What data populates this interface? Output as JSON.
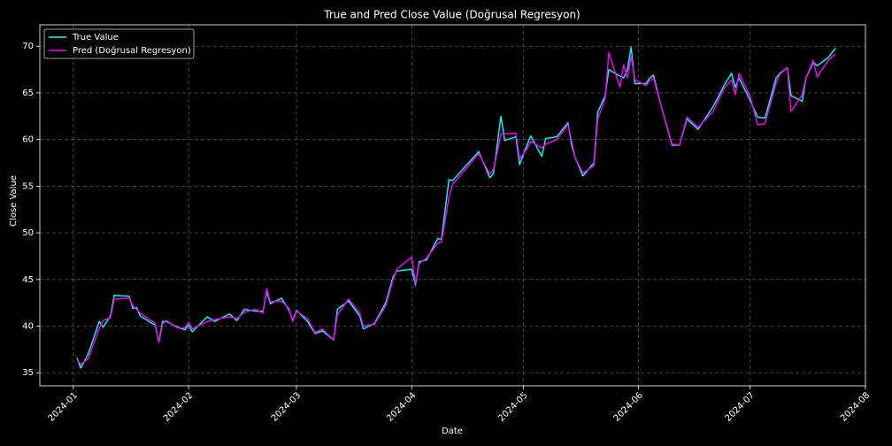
{
  "chart_data": {
    "type": "line",
    "title": "True and Pred Close Value (Doğrusal Regresyon)",
    "xlabel": "Date",
    "ylabel": "Close Value",
    "x": [
      "2024-01-02",
      "2024-01-03",
      "2024-01-05",
      "2024-01-08",
      "2024-01-09",
      "2024-01-11",
      "2024-01-12",
      "2024-01-16",
      "2024-01-17",
      "2024-01-18",
      "2024-01-19",
      "2024-01-23",
      "2024-01-24",
      "2024-01-25",
      "2024-01-26",
      "2024-01-29",
      "2024-01-31",
      "2024-02-01",
      "2024-02-02",
      "2024-02-06",
      "2024-02-08",
      "2024-02-12",
      "2024-02-14",
      "2024-02-16",
      "2024-02-19",
      "2024-02-21",
      "2024-02-22",
      "2024-02-23",
      "2024-02-26",
      "2024-02-28",
      "2024-02-29",
      "2024-03-01",
      "2024-03-04",
      "2024-03-06",
      "2024-03-08",
      "2024-03-11",
      "2024-03-12",
      "2024-03-15",
      "2024-03-18",
      "2024-03-19",
      "2024-03-22",
      "2024-03-25",
      "2024-03-27",
      "2024-03-28",
      "2024-04-01",
      "2024-04-02",
      "2024-04-03",
      "2024-04-05",
      "2024-04-08",
      "2024-04-09",
      "2024-04-11",
      "2024-04-12",
      "2024-04-19",
      "2024-04-22",
      "2024-04-23",
      "2024-04-25",
      "2024-04-26",
      "2024-04-29",
      "2024-04-30",
      "2024-05-02",
      "2024-05-03",
      "2024-05-06",
      "2024-05-07",
      "2024-05-10",
      "2024-05-13",
      "2024-05-14",
      "2024-05-15",
      "2024-05-17",
      "2024-05-20",
      "2024-05-21",
      "2024-05-23",
      "2024-05-24",
      "2024-05-27",
      "2024-05-28",
      "2024-05-29",
      "2024-05-30",
      "2024-05-31",
      "2024-06-03",
      "2024-06-04",
      "2024-06-05",
      "2024-06-07",
      "2024-06-10",
      "2024-06-12",
      "2024-06-14",
      "2024-06-17",
      "2024-06-21",
      "2024-06-24",
      "2024-06-26",
      "2024-06-27",
      "2024-06-28",
      "2024-07-01",
      "2024-07-03",
      "2024-07-05",
      "2024-07-08",
      "2024-07-09",
      "2024-07-11",
      "2024-07-12",
      "2024-07-15",
      "2024-07-16",
      "2024-07-18",
      "2024-07-19",
      "2024-07-22",
      "2024-07-24"
    ],
    "series": [
      {
        "name": "True Value",
        "color": "#00ffff",
        "values": [
          36.6,
          35.5,
          37.0,
          40.5,
          39.9,
          41.1,
          43.3,
          43.2,
          41.9,
          42.0,
          41.1,
          40.1,
          38.3,
          40.5,
          40.5,
          39.9,
          39.6,
          40.1,
          39.4,
          41.0,
          40.5,
          41.3,
          40.6,
          41.8,
          41.6,
          41.6,
          43.7,
          42.4,
          43.0,
          41.7,
          40.6,
          41.7,
          40.5,
          39.2,
          39.5,
          38.5,
          41.8,
          42.7,
          41.1,
          39.7,
          40.3,
          42.5,
          45.3,
          45.9,
          46.1,
          44.4,
          46.9,
          47.1,
          49.4,
          49.3,
          55.7,
          55.6,
          58.7,
          55.9,
          56.4,
          62.5,
          59.9,
          60.3,
          57.3,
          59.4,
          60.4,
          58.2,
          60.1,
          60.3,
          61.8,
          59.4,
          58.0,
          56.1,
          57.5,
          62.9,
          64.7,
          67.5,
          66.8,
          66.6,
          67.5,
          69.9,
          66.0,
          66.0,
          66.6,
          66.9,
          63.7,
          59.4,
          59.4,
          62.2,
          61.1,
          63.5,
          65.8,
          67.1,
          65.6,
          66.6,
          64.2,
          62.4,
          62.3,
          66.6,
          67.1,
          67.7,
          64.7,
          64.1,
          66.6,
          68.3,
          67.9,
          68.8,
          69.8
        ]
      },
      {
        "name": "Pred (Doğrusal Regresyon)",
        "color": "#ff00ff",
        "values": [
          36.4,
          35.9,
          36.5,
          39.8,
          40.6,
          40.9,
          42.9,
          43.0,
          42.2,
          41.8,
          41.4,
          40.3,
          38.2,
          40.2,
          40.6,
          39.8,
          39.8,
          40.4,
          39.7,
          40.5,
          40.7,
          41.0,
          40.8,
          41.5,
          41.8,
          41.4,
          44.0,
          42.6,
          42.7,
          41.9,
          40.5,
          41.6,
          40.8,
          39.3,
          39.7,
          38.5,
          41.2,
          42.9,
          41.4,
          40.0,
          40.2,
          42.2,
          45.0,
          46.1,
          47.4,
          44.6,
          46.7,
          47.3,
          48.9,
          49.0,
          53.8,
          55.2,
          58.5,
          56.3,
          56.8,
          60.6,
          60.6,
          60.7,
          57.9,
          59.0,
          59.8,
          59.1,
          59.5,
          60.0,
          61.6,
          59.8,
          58.0,
          56.4,
          57.2,
          62.2,
          64.4,
          69.3,
          65.6,
          68.0,
          66.6,
          68.9,
          66.4,
          65.8,
          66.3,
          66.6,
          63.7,
          59.5,
          59.4,
          62.4,
          61.3,
          63.0,
          65.5,
          66.4,
          64.8,
          67.1,
          64.6,
          61.6,
          61.7,
          66.1,
          67.0,
          67.7,
          63.0,
          64.8,
          66.6,
          68.5,
          66.7,
          68.5,
          69.2
        ]
      }
    ],
    "xlim": [
      "2023-12-23",
      "2024-08-01"
    ],
    "xticks": [
      {
        "value": "2024-01-01",
        "label": "2024-01"
      },
      {
        "value": "2024-02-01",
        "label": "2024-02"
      },
      {
        "value": "2024-03-01",
        "label": "2024-03"
      },
      {
        "value": "2024-04-01",
        "label": "2024-04"
      },
      {
        "value": "2024-05-01",
        "label": "2024-05"
      },
      {
        "value": "2024-06-01",
        "label": "2024-06"
      },
      {
        "value": "2024-07-01",
        "label": "2024-07"
      },
      {
        "value": "2024-08-01",
        "label": "2024-08"
      }
    ],
    "ylim": [
      33.6,
      72.3
    ],
    "yticks": [
      35,
      40,
      45,
      50,
      55,
      60,
      65,
      70
    ],
    "grid": true,
    "legend": "upper left"
  }
}
